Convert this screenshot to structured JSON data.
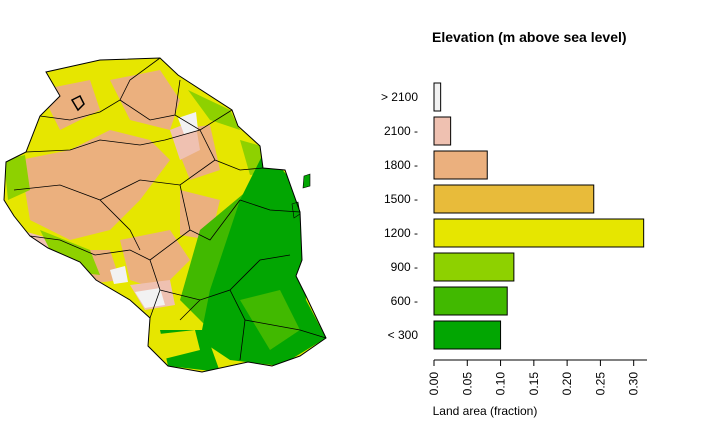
{
  "chart_data": [
    {
      "type": "map",
      "title": "",
      "legend": "none",
      "elevation_colors": [
        "#02a602",
        "#41b900",
        "#8ed100",
        "#e6e600",
        "#e8bb3a",
        "#ebb07e",
        "#efc1b1",
        "#f2f2f2"
      ]
    },
    {
      "type": "bar",
      "orientation": "horizontal",
      "title": "Elevation (m above sea level)",
      "xlabel": "Land area (fraction)",
      "ylabel": "",
      "categories": [
        "< 300",
        "600 -",
        "900 -",
        "1200 -",
        "1500 -",
        "1800 -",
        "2100 -",
        "> 2100"
      ],
      "values": [
        0.1,
        0.11,
        0.12,
        0.315,
        0.24,
        0.08,
        0.025,
        0.01
      ],
      "colors": [
        "#02a602",
        "#41b900",
        "#8ed100",
        "#e6e600",
        "#e8bb3a",
        "#ebb07e",
        "#efc1b1",
        "#f2f2f2"
      ],
      "xlim": [
        0,
        0.32
      ],
      "xticks": [
        "0.00",
        "0.05",
        "0.10",
        "0.15",
        "0.20",
        "0.25",
        "0.30"
      ],
      "xtick_values": [
        0,
        0.05,
        0.1,
        0.15,
        0.2,
        0.25,
        0.3
      ],
      "grid": false
    }
  ]
}
